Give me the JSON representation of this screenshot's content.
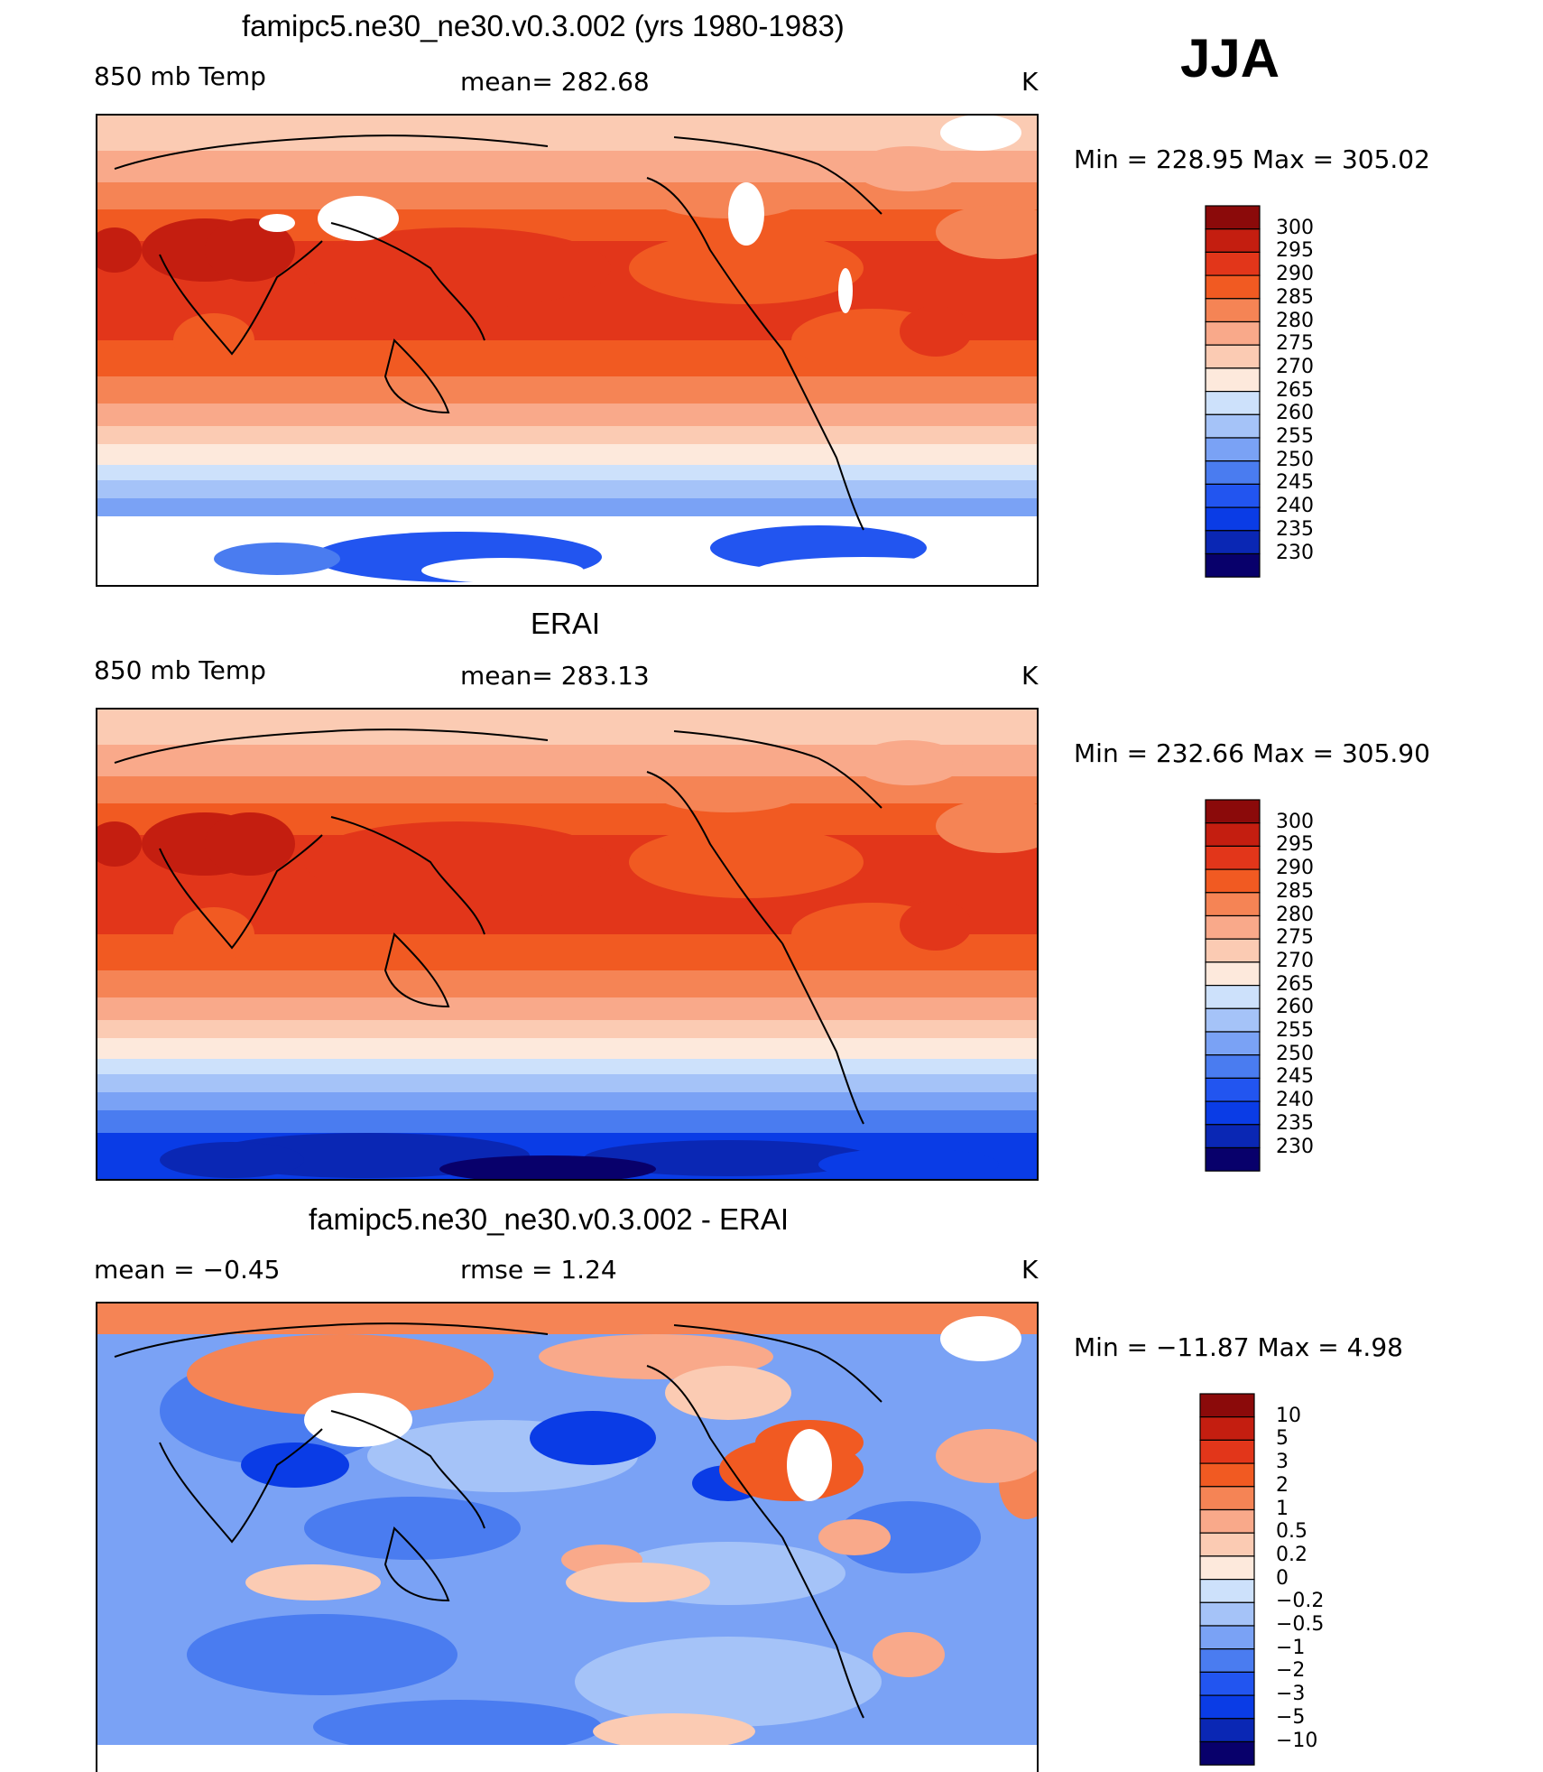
{
  "season": "JJA",
  "colors": {
    "abs": [
      "#08006b",
      "#0a27b4",
      "#0a3ce6",
      "#2255f0",
      "#4a7cf0",
      "#7aa2f5",
      "#a5c3f8",
      "#cde1fb",
      "#fde9dc",
      "#fbcbb3",
      "#f9a98a",
      "#f58455",
      "#f15a22",
      "#e2361a",
      "#c41e10",
      "#8b0a0a"
    ],
    "diff": [
      "#08006b",
      "#0a27b4",
      "#0a3ce6",
      "#2255f0",
      "#4a7cf0",
      "#7aa2f5",
      "#a5c3f8",
      "#cde1fb",
      "#fde9dc",
      "#fbcbb3",
      "#f9a98a",
      "#f58455",
      "#f15a22",
      "#e2361a",
      "#c41e10",
      "#8b0a0a"
    ]
  },
  "panels": [
    {
      "id": "model",
      "title": "famipc5.ne30_ne30.v0.3.002 (yrs 1980-1983)",
      "left_label": "850 mb Temp",
      "center_label": "mean= 282.68",
      "units": "K",
      "minmax": "Min = 228.95 Max = 305.02",
      "colorbar": [
        "300",
        "295",
        "290",
        "285",
        "280",
        "275",
        "270",
        "265",
        "260",
        "255",
        "250",
        "245",
        "240",
        "235",
        "230"
      ]
    },
    {
      "id": "obs",
      "title": "ERAI",
      "left_label": "850 mb Temp",
      "center_label": "mean= 283.13",
      "units": "K",
      "minmax": "Min = 232.66 Max = 305.90",
      "colorbar": [
        "300",
        "295",
        "290",
        "285",
        "280",
        "275",
        "270",
        "265",
        "260",
        "255",
        "250",
        "245",
        "240",
        "235",
        "230"
      ]
    },
    {
      "id": "diff",
      "title": "famipc5.ne30_ne30.v0.3.002 - ERAI",
      "left_label": "mean =   −0.45",
      "center_label": "rmse =    1.24",
      "units": "K",
      "minmax": "Min = −11.87 Max =    4.98",
      "colorbar": [
        "10",
        "5",
        "3",
        "2",
        "1",
        "0.5",
        "0.2",
        "0",
        "−0.2",
        "−0.5",
        "−1",
        "−2",
        "−3",
        "−5",
        "−10"
      ]
    }
  ]
}
